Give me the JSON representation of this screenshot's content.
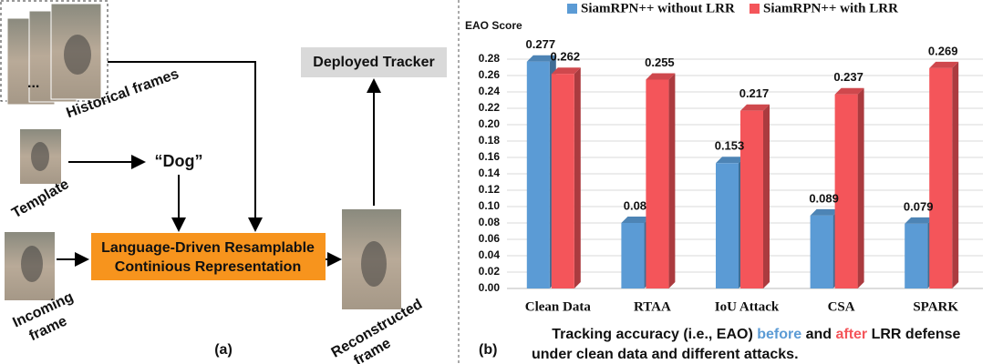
{
  "diagram": {
    "historical_label": "Historical frames",
    "ellipsis": "...",
    "template_label": "Template",
    "query": "“Dog”",
    "incoming_label": [
      "Incoming",
      "frame"
    ],
    "module": [
      "Language-Driven Resamplable",
      "Continious Representation"
    ],
    "reconstructed_label": [
      "Reconstructed",
      "frame"
    ],
    "tracker": "Deployed Tracker",
    "panel_label": "(a)"
  },
  "chart_data": {
    "type": "bar3d",
    "ylabel": "EAO Score",
    "categories": [
      "Clean Data",
      "RTAA",
      "IoU Attack",
      "CSA",
      "SPARK"
    ],
    "series": [
      {
        "name": "SiamRPN++ without LRR",
        "color": "#5b9bd5",
        "values": [
          0.277,
          0.08,
          0.153,
          0.089,
          0.079
        ]
      },
      {
        "name": "SiamRPN++ with LRR",
        "color": "#f4555a",
        "values": [
          0.262,
          0.255,
          0.217,
          0.237,
          0.269
        ]
      }
    ],
    "ylim": [
      0,
      0.28
    ],
    "yticks": [
      {
        "value": 0,
        "label": "0.00"
      },
      0.02,
      0.04,
      0.06,
      0.08,
      {
        "value": 0.1,
        "label": "0.10"
      },
      0.12,
      0.14,
      0.16,
      0.18,
      {
        "value": 0.2,
        "label": "0.20"
      },
      0.22,
      0.24,
      0.26,
      0.28
    ],
    "grid": true,
    "legend": "top",
    "panel_label": "(b)",
    "caption": [
      [
        "Tracking accuracy (i.e., EAO) ",
        "before",
        " and ",
        "after",
        " LRR defense"
      ],
      [
        "under clean data and different attacks."
      ]
    ]
  }
}
